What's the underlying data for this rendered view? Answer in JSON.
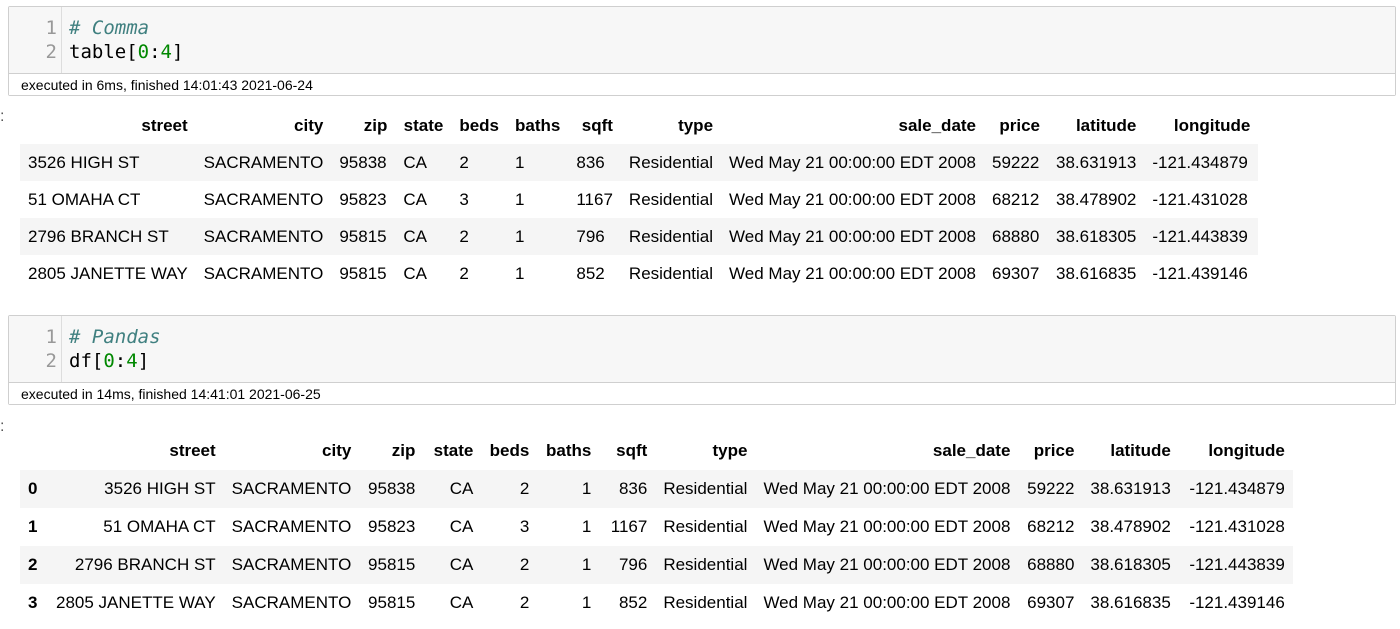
{
  "cells": [
    {
      "lines": [
        {
          "no": "1",
          "comment": "# Comma"
        },
        {
          "no": "2",
          "code": "table[",
          "num": "0",
          "code2": ":",
          "num2": "4",
          "code3": "]"
        }
      ],
      "exec_info": "executed in 6ms, finished 14:01:43 2021-06-24"
    },
    {
      "lines": [
        {
          "no": "1",
          "comment": "# Pandas"
        },
        {
          "no": "2",
          "code": "df[",
          "num": "0",
          "code2": ":",
          "num2": "4",
          "code3": "]"
        }
      ],
      "exec_info": "executed in 14ms, finished 14:41:01 2021-06-25"
    }
  ],
  "prompt_marker": ":",
  "table1": {
    "headers": [
      "street",
      "city",
      "zip",
      "state",
      "beds",
      "baths",
      "sqft",
      "type",
      "sale_date",
      "price",
      "latitude",
      "longitude"
    ],
    "rows": [
      [
        "3526 HIGH ST",
        "SACRAMENTO",
        "95838",
        "CA",
        "2",
        "1",
        "836",
        "Residential",
        "Wed May 21 00:00:00 EDT 2008",
        "59222",
        "38.631913",
        "-121.434879"
      ],
      [
        "51 OMAHA CT",
        "SACRAMENTO",
        "95823",
        "CA",
        "3",
        "1",
        "1167",
        "Residential",
        "Wed May 21 00:00:00 EDT 2008",
        "68212",
        "38.478902",
        "-121.431028"
      ],
      [
        "2796 BRANCH ST",
        "SACRAMENTO",
        "95815",
        "CA",
        "2",
        "1",
        "796",
        "Residential",
        "Wed May 21 00:00:00 EDT 2008",
        "68880",
        "38.618305",
        "-121.443839"
      ],
      [
        "2805 JANETTE WAY",
        "SACRAMENTO",
        "95815",
        "CA",
        "2",
        "1",
        "852",
        "Residential",
        "Wed May 21 00:00:00 EDT 2008",
        "69307",
        "38.616835",
        "-121.439146"
      ]
    ]
  },
  "table2": {
    "headers": [
      "",
      "street",
      "city",
      "zip",
      "state",
      "beds",
      "baths",
      "sqft",
      "type",
      "sale_date",
      "price",
      "latitude",
      "longitude"
    ],
    "rows": [
      [
        "0",
        "3526 HIGH ST",
        "SACRAMENTO",
        "95838",
        "CA",
        "2",
        "1",
        "836",
        "Residential",
        "Wed May 21 00:00:00 EDT 2008",
        "59222",
        "38.631913",
        "-121.434879"
      ],
      [
        "1",
        "51 OMAHA CT",
        "SACRAMENTO",
        "95823",
        "CA",
        "3",
        "1",
        "1167",
        "Residential",
        "Wed May 21 00:00:00 EDT 2008",
        "68212",
        "38.478902",
        "-121.431028"
      ],
      [
        "2",
        "2796 BRANCH ST",
        "SACRAMENTO",
        "95815",
        "CA",
        "2",
        "1",
        "796",
        "Residential",
        "Wed May 21 00:00:00 EDT 2008",
        "68880",
        "38.618305",
        "-121.443839"
      ],
      [
        "3",
        "2805 JANETTE WAY",
        "SACRAMENTO",
        "95815",
        "CA",
        "2",
        "1",
        "852",
        "Residential",
        "Wed May 21 00:00:00 EDT 2008",
        "69307",
        "38.616835",
        "-121.439146"
      ]
    ]
  }
}
